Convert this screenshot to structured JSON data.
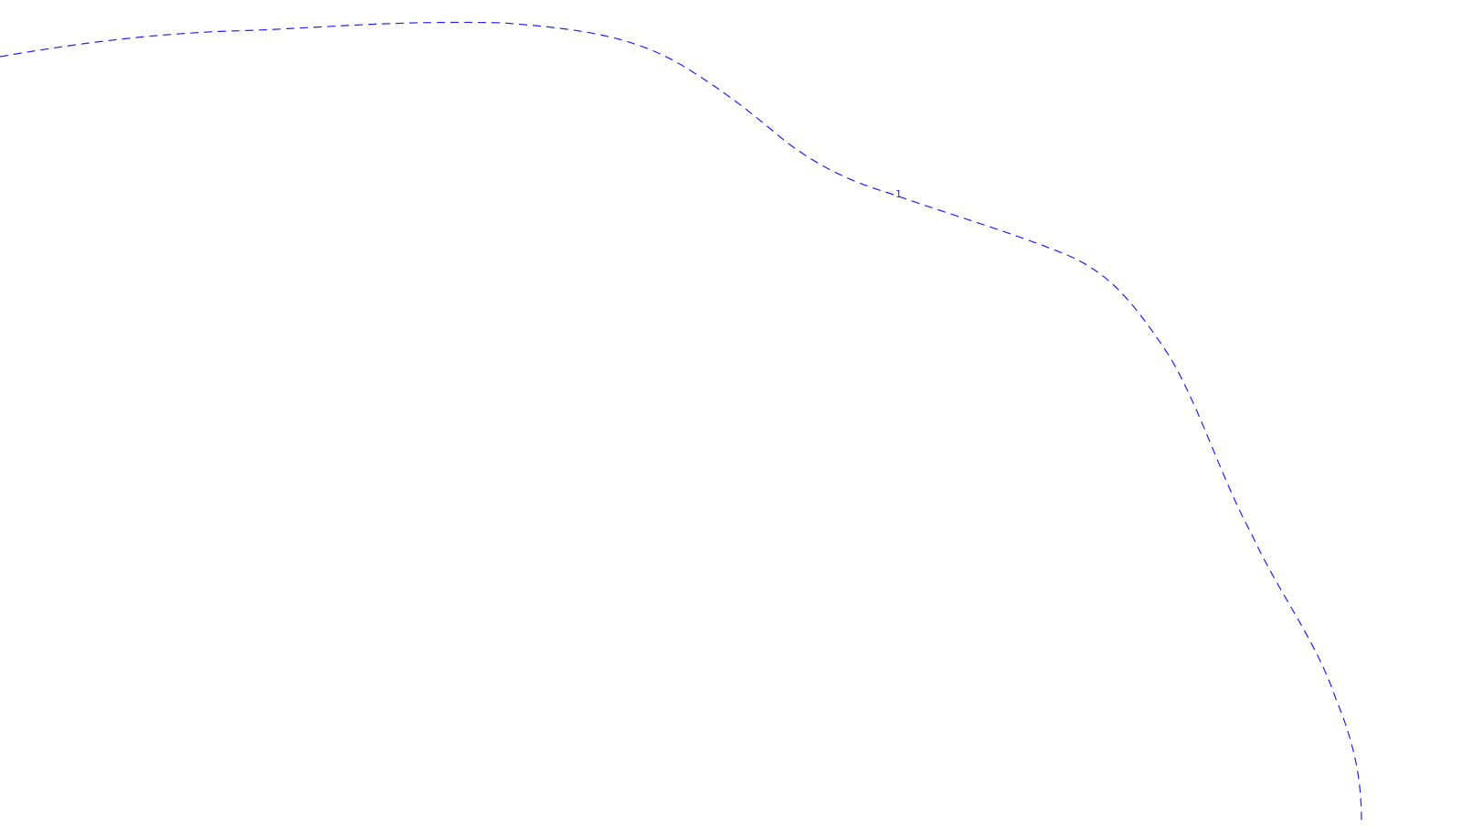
{
  "map": {
    "background": "#ffffff",
    "line_color": "#2020ff",
    "line_style": "dashed",
    "boundary_label": "1"
  }
}
